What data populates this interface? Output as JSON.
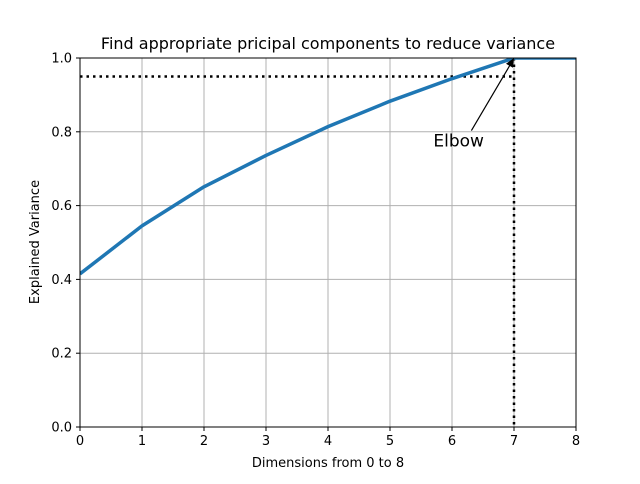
{
  "chart_data": {
    "type": "line",
    "title": "Find appropriate pricipal components to reduce variance",
    "xlabel": "Dimensions from 0 to 8",
    "ylabel": "Explained Variance",
    "xlim": [
      0,
      8
    ],
    "ylim": [
      0,
      1.0
    ],
    "xticks": [
      0,
      1,
      2,
      3,
      4,
      5,
      6,
      7,
      8
    ],
    "yticks": [
      0.0,
      0.2,
      0.4,
      0.6,
      0.8,
      1.0
    ],
    "xtick_labels": [
      "0",
      "1",
      "2",
      "3",
      "4",
      "5",
      "6",
      "7",
      "8"
    ],
    "ytick_labels": [
      "0.0",
      "0.2",
      "0.4",
      "0.6",
      "0.8",
      "1.0"
    ],
    "grid": true,
    "series": [
      {
        "x": [
          0,
          1,
          2,
          3,
          4,
          5,
          6,
          7,
          8
        ],
        "values": [
          0.415,
          0.545,
          0.651,
          0.736,
          0.814,
          0.883,
          0.944,
          1.0,
          1.0
        ],
        "color": "#1f77b4"
      }
    ],
    "reference_lines": [
      {
        "orientation": "horizontal",
        "value": 0.95,
        "style": "dotted",
        "color": "#000000"
      },
      {
        "orientation": "vertical",
        "value": 7,
        "style": "dotted",
        "color": "#000000"
      }
    ],
    "annotation": {
      "text": "Elbow",
      "point_x": 7,
      "point_y": 1.0,
      "text_x": 5.7,
      "text_y": 0.76
    }
  }
}
